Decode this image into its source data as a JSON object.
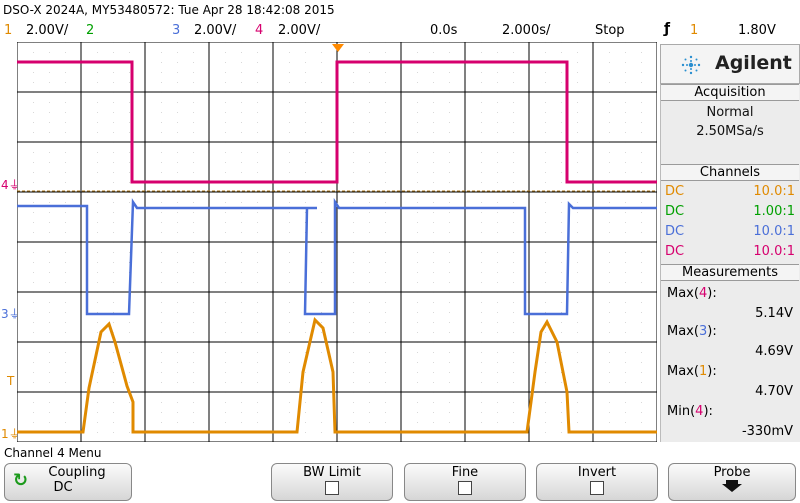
{
  "header": {
    "title": "DSO-X 2024A, MY53480572: Tue Apr 28 18:42:08 2015",
    "ch1_num": "1",
    "ch1_scale": "2.00V/",
    "ch2_num": "2",
    "ch3_num": "3",
    "ch3_scale": "2.00V/",
    "ch4_num": "4",
    "ch4_scale": "2.00V/",
    "delay": "0.0s",
    "timebase": "2.000s/",
    "run_state": "Stop",
    "trigger_icon": "trigger-edge-icon",
    "trigger_channel": "1",
    "trigger_level": "1.80V"
  },
  "colors": {
    "ch1": "#e08a00",
    "ch2": "#00a000",
    "ch3": "#4a6fd8",
    "ch4": "#d6006e",
    "grid": "#000000",
    "trigger": "#e08a00"
  },
  "plot": {
    "left_markers": {
      "ch4": "4",
      "ch3": "3",
      "trig": "T",
      "ch1": "1"
    }
  },
  "sidebar": {
    "brand": "Agilent",
    "brand_icon": "agilent-spark-icon",
    "acquisition": {
      "title": "Acquisition",
      "mode": "Normal",
      "rate": "2.50MSa/s"
    },
    "channels": {
      "title": "Channels",
      "rows": [
        {
          "coupling": "DC",
          "probe": "10.0:1"
        },
        {
          "coupling": "DC",
          "probe": "1.00:1"
        },
        {
          "coupling": "DC",
          "probe": "10.0:1"
        },
        {
          "coupling": "DC",
          "probe": "10.0:1"
        }
      ]
    },
    "measurements": {
      "title": "Measurements",
      "items": [
        {
          "name": "Max",
          "ch": "4",
          "value": "5.14V"
        },
        {
          "name": "Max",
          "ch": "3",
          "value": "4.69V"
        },
        {
          "name": "Max",
          "ch": "1",
          "value": "4.70V"
        },
        {
          "name": "Min",
          "ch": "4",
          "value": "-330mV"
        }
      ]
    }
  },
  "menu": {
    "title": "Channel 4 Menu",
    "coupling_label": "Coupling",
    "coupling_value": "DC",
    "bw_limit": "BW Limit",
    "fine": "Fine",
    "invert": "Invert",
    "probe": "Probe"
  }
}
